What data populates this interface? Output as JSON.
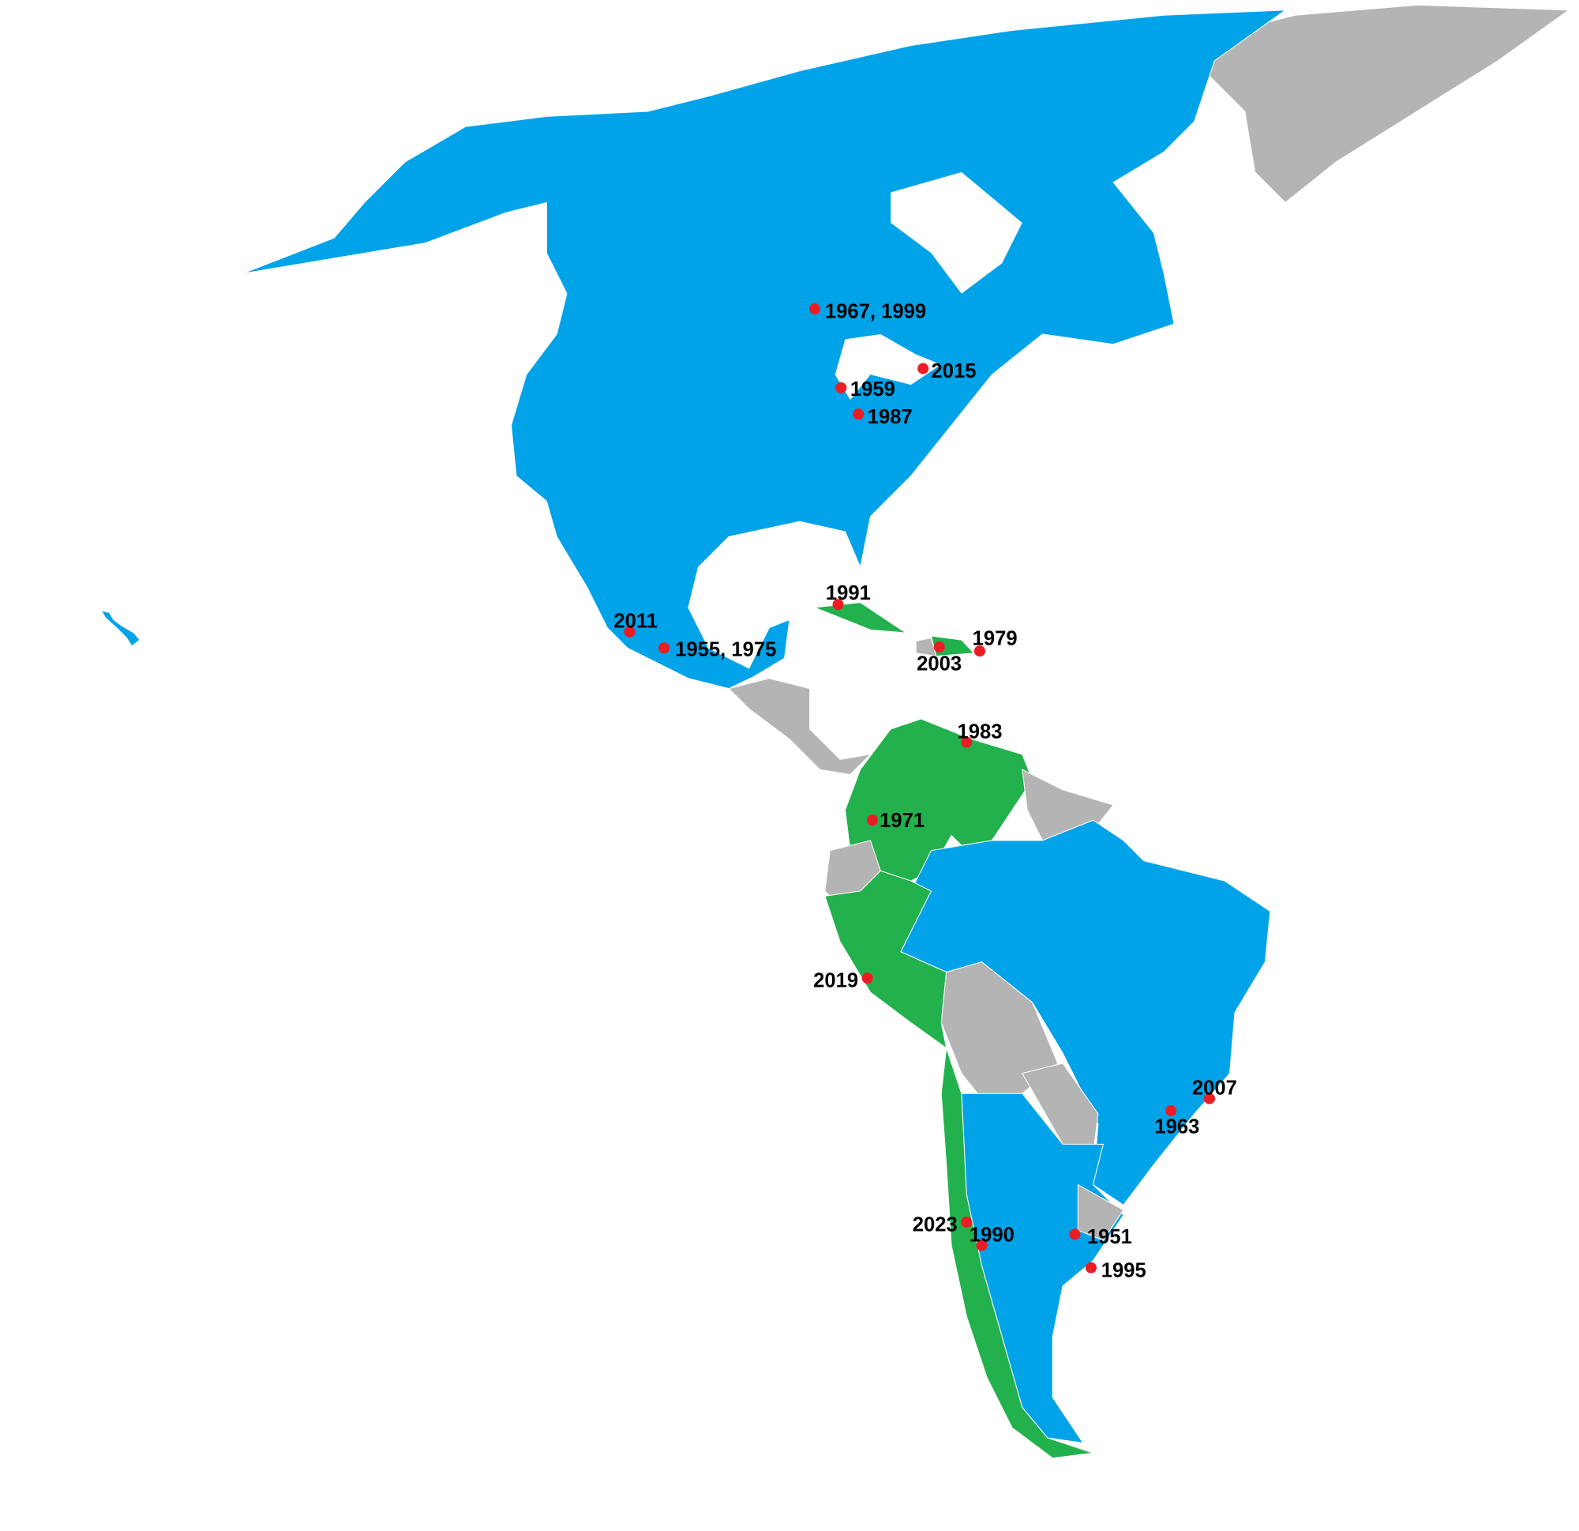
{
  "colors": {
    "blue_group": "#00A2E8",
    "green_group": "#22B14C",
    "other": "#B4B4B4",
    "marker": "#ED1C24",
    "water": "#FFFFFF"
  },
  "regions": [
    {
      "id": "greenland",
      "group": "other"
    },
    {
      "id": "north-america",
      "group": "blue_group"
    },
    {
      "id": "hawaii",
      "group": "blue_group"
    },
    {
      "id": "central-america",
      "group": "other"
    },
    {
      "id": "cuba",
      "group": "green_group"
    },
    {
      "id": "haiti",
      "group": "other"
    },
    {
      "id": "dominican-republic",
      "group": "green_group"
    },
    {
      "id": "colombia-venezuela",
      "group": "green_group"
    },
    {
      "id": "guianas",
      "group": "other"
    },
    {
      "id": "ecuador",
      "group": "other"
    },
    {
      "id": "brazil",
      "group": "blue_group"
    },
    {
      "id": "peru",
      "group": "green_group"
    },
    {
      "id": "bolivia",
      "group": "other"
    },
    {
      "id": "paraguay",
      "group": "other"
    },
    {
      "id": "argentina",
      "group": "blue_group"
    },
    {
      "id": "chile",
      "group": "green_group"
    },
    {
      "id": "uruguay",
      "group": "other"
    }
  ],
  "markers": [
    {
      "label": "1967, 1999"
    },
    {
      "label": "2015"
    },
    {
      "label": "1959"
    },
    {
      "label": "1987"
    },
    {
      "label": "1991"
    },
    {
      "label": "2011"
    },
    {
      "label": "1955, 1975"
    },
    {
      "label": "1979"
    },
    {
      "label": "2003"
    },
    {
      "label": "1983"
    },
    {
      "label": "1971"
    },
    {
      "label": "2019"
    },
    {
      "label": "2007"
    },
    {
      "label": "1963"
    },
    {
      "label": "2023"
    },
    {
      "label": "1990"
    },
    {
      "label": "1951"
    },
    {
      "label": "1995"
    }
  ]
}
